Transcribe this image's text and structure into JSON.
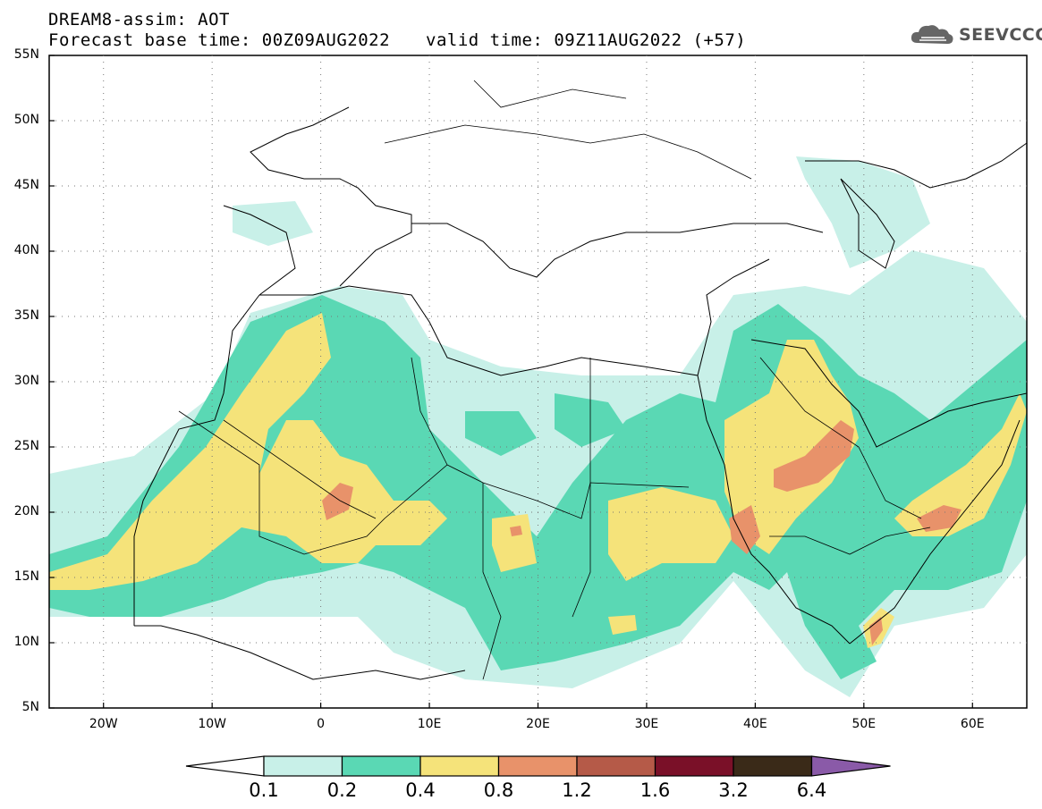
{
  "header": {
    "line1": "DREAM8-assim: AOT",
    "base_label": "Forecast base time: 00Z09AUG2022",
    "valid_label": "valid time: 09Z11AUG2022 (+57)"
  },
  "logo": {
    "icon": "cloud-icon",
    "text": "SEEVCCC"
  },
  "map": {
    "lat_labels": [
      "55N",
      "50N",
      "45N",
      "40N",
      "35N",
      "30N",
      "25N",
      "20N",
      "15N",
      "10N",
      "5N"
    ],
    "lon_labels": [
      "20W",
      "10W",
      "0",
      "10E",
      "20E",
      "30E",
      "40E",
      "50E",
      "60E"
    ],
    "lat_range": [
      5,
      55
    ],
    "lon_range": [
      -25,
      65
    ],
    "grid": "dotted"
  },
  "colorbar": {
    "labels": [
      "0.1",
      "0.2",
      "0.4",
      "0.8",
      "1.2",
      "1.6",
      "3.2",
      "6.4"
    ],
    "colors": [
      "#ffffff",
      "#c8f0e8",
      "#5ad8b4",
      "#f5e37a",
      "#e8926a",
      "#b55a48",
      "#7a1028",
      "#3a2a18",
      "#8a5aa8"
    ]
  }
}
